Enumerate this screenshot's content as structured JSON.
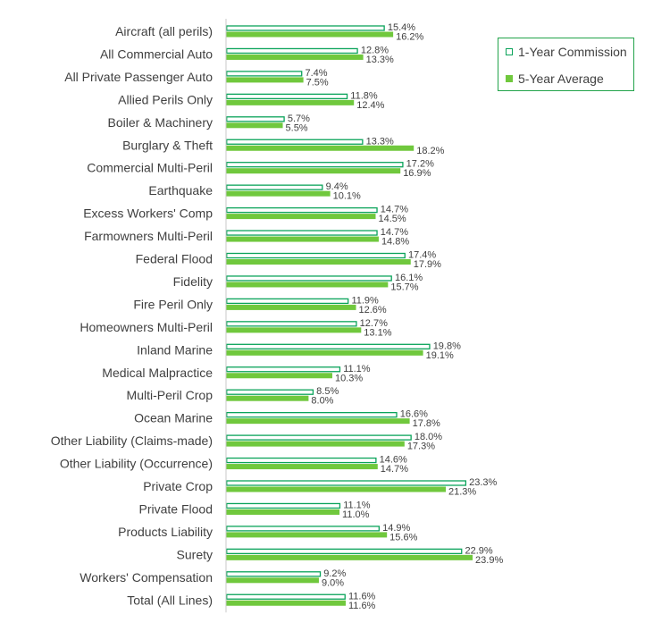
{
  "colors": {
    "one_year_border": "#0aa35a",
    "one_year_fill": "#ffffff",
    "five_year_fill": "#70c83d",
    "text": "#404040",
    "axis": "#c8c8c8",
    "legend_border": "#22a34a"
  },
  "legend": {
    "one_year_label": "1-Year Commission",
    "five_year_label": "5-Year Average"
  },
  "chart_data": {
    "type": "bar",
    "orientation": "horizontal",
    "title": "",
    "xlabel": "",
    "ylabel": "",
    "xlim": [
      0,
      25
    ],
    "grid": false,
    "legend_position": "top-right",
    "categories": [
      "Aircraft (all perils)",
      "All Commercial Auto",
      "All Private Passenger Auto",
      "Allied Perils Only",
      "Boiler & Machinery",
      "Burglary & Theft",
      "Commercial Multi-Peril",
      "Earthquake",
      "Excess Workers' Comp",
      "Farmowners Multi-Peril",
      "Federal Flood",
      "Fidelity",
      "Fire Peril Only",
      "Homeowners Multi-Peril",
      "Inland Marine",
      "Medical Malpractice",
      "Multi-Peril Crop",
      "Ocean Marine",
      "Other Liability (Claims-made)",
      "Other Liability (Occurrence)",
      "Private Crop",
      "Private Flood",
      "Products Liability",
      "Surety",
      "Workers' Compensation",
      "Total (All Lines)"
    ],
    "series": [
      {
        "name": "1-Year Commission",
        "values": [
          15.4,
          12.8,
          7.4,
          11.8,
          5.7,
          13.3,
          17.2,
          9.4,
          14.7,
          14.7,
          17.4,
          16.1,
          11.9,
          12.7,
          19.8,
          11.1,
          8.5,
          16.6,
          18.0,
          14.6,
          23.3,
          11.1,
          14.9,
          22.9,
          9.2,
          11.6
        ],
        "labels": [
          "15.4%",
          "12.8%",
          "7.4%",
          "11.8%",
          "5.7%",
          "13.3%",
          "17.2%",
          "9.4%",
          "14.7%",
          "14.7%",
          "17.4%",
          "16.1%",
          "11.9%",
          "12.7%",
          "19.8%",
          "11.1%",
          "8.5%",
          "16.6%",
          "18.0%",
          "14.6%",
          "23.3%",
          "11.1%",
          "14.9%",
          "22.9%",
          "9.2%",
          "11.6%"
        ]
      },
      {
        "name": "5-Year Average",
        "values": [
          16.2,
          13.3,
          7.5,
          12.4,
          5.5,
          18.2,
          16.9,
          10.1,
          14.5,
          14.8,
          17.9,
          15.7,
          12.6,
          13.1,
          19.1,
          10.3,
          8.0,
          17.8,
          17.3,
          14.7,
          21.3,
          11.0,
          15.6,
          23.9,
          9.0,
          11.6
        ],
        "labels": [
          "16.2%",
          "13.3%",
          "7.5%",
          "12.4%",
          "5.5%",
          "18.2%",
          "16.9%",
          "10.1%",
          "14.5%",
          "14.8%",
          "17.9%",
          "15.7%",
          "12.6%",
          "13.1%",
          "19.1%",
          "10.3%",
          "8.0%",
          "17.8%",
          "17.3%",
          "14.7%",
          "21.3%",
          "11.0%",
          "15.6%",
          "23.9%",
          "9.0%",
          "11.6%"
        ]
      }
    ]
  }
}
